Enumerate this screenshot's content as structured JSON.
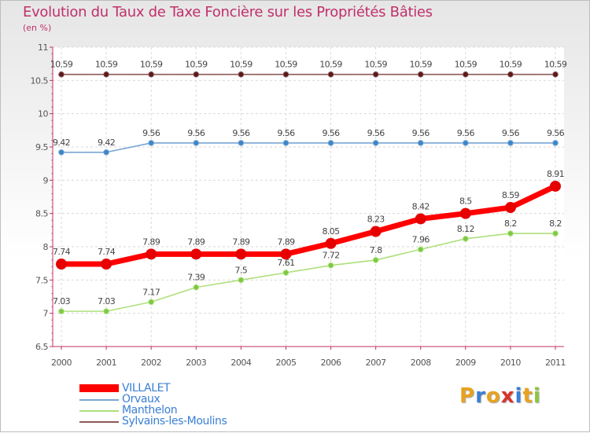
{
  "header": {
    "title": "Evolution du Taux de Taxe Foncière sur les Propriétés Bâties",
    "unit": "(en %)"
  },
  "logo": {
    "letters": [
      "P",
      "r",
      "o",
      "x",
      "i",
      "t",
      "i"
    ],
    "colors": [
      "#e8a21f",
      "#3a7fd5",
      "#e8a21f",
      "#d9342b",
      "#3a7fd5",
      "#e8a21f",
      "#8dc63f"
    ]
  },
  "chart_data": {
    "type": "line",
    "title": "Evolution du Taux de Taxe Foncière sur les Propriétés Bâties",
    "ylabel": "(en %)",
    "xlabel": "",
    "categories": [
      "2000",
      "2001",
      "2002",
      "2003",
      "2004",
      "2005",
      "2006",
      "2007",
      "2008",
      "2009",
      "2010",
      "2011"
    ],
    "ylim": [
      6.5,
      11
    ],
    "yticks": [
      "6.5",
      "7",
      "7.5",
      "8",
      "8.5",
      "9",
      "9.5",
      "10",
      "10.5",
      "11"
    ],
    "grid": true,
    "legend_position": "bottom-left",
    "series": [
      {
        "name": "VILLALET",
        "color": "#ff0000",
        "marker": "#e60000",
        "values": [
          7.74,
          7.74,
          7.89,
          7.89,
          7.89,
          7.89,
          8.05,
          8.23,
          8.42,
          8.5,
          8.59,
          8.91
        ],
        "labels": [
          "7.74",
          "7.74",
          "7.89",
          "7.89",
          "7.89",
          "7.89",
          "8.05",
          "8.23",
          "8.42",
          "8.5",
          "8.59",
          "8.91"
        ]
      },
      {
        "name": "Orvaux",
        "color": "#79a6d2",
        "marker": "#3a86c8",
        "values": [
          9.42,
          9.42,
          9.56,
          9.56,
          9.56,
          9.56,
          9.56,
          9.56,
          9.56,
          9.56,
          9.56,
          9.56
        ],
        "labels": [
          "9.42",
          "9.42",
          "9.56",
          "9.56",
          "9.56",
          "9.56",
          "9.56",
          "9.56",
          "9.56",
          "9.56",
          "9.56",
          "9.56"
        ]
      },
      {
        "name": "Manthelon",
        "color": "#aee07c",
        "marker": "#7cc943",
        "values": [
          7.03,
          7.03,
          7.17,
          7.39,
          7.5,
          7.61,
          7.72,
          7.8,
          7.96,
          8.12,
          8.2,
          8.2
        ],
        "labels": [
          "7.03",
          "7.03",
          "7.17",
          "7.39",
          "7.5",
          "7.61",
          "7.72",
          "7.8",
          "7.96",
          "8.12",
          "8.2",
          "8.2"
        ]
      },
      {
        "name": "Sylvains-les-Moulins",
        "color": "#8b5a5a",
        "marker": "#5b1a1a",
        "values": [
          10.59,
          10.59,
          10.59,
          10.59,
          10.59,
          10.59,
          10.59,
          10.59,
          10.59,
          10.59,
          10.59,
          10.59
        ],
        "labels": [
          "10.59",
          "10.59",
          "10.59",
          "10.59",
          "10.59",
          "10.59",
          "10.59",
          "10.59",
          "10.59",
          "10.59",
          "10.59",
          "10.59"
        ]
      }
    ]
  }
}
